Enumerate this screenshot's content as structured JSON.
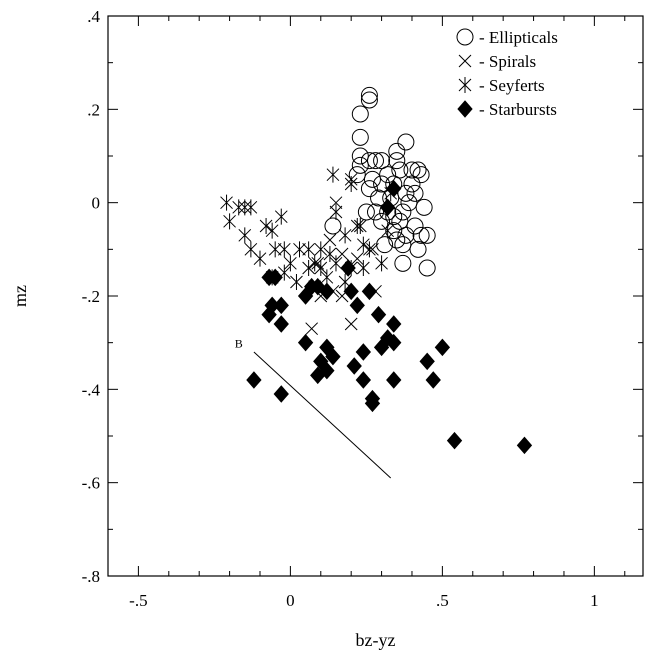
{
  "chart_data": {
    "type": "scatter",
    "title": "",
    "xlabel": "bz-yz",
    "ylabel": "mz",
    "xlim": [
      -0.6,
      1.16
    ],
    "ylim": [
      -0.8,
      0.4
    ],
    "grid": false,
    "legend_position": "top-right",
    "x_ticks": [
      {
        "value": -0.5,
        "label": "-.5"
      },
      {
        "value": 0,
        "label": "0"
      },
      {
        "value": 0.5,
        "label": ".5"
      },
      {
        "value": 1,
        "label": "1"
      }
    ],
    "y_ticks": [
      {
        "value": 0.4,
        "label": ".4"
      },
      {
        "value": 0.2,
        "label": ".2"
      },
      {
        "value": 0,
        "label": "0"
      },
      {
        "value": -0.2,
        "label": "-.2"
      },
      {
        "value": -0.4,
        "label": "-.4"
      },
      {
        "value": -0.6,
        "label": "-.6"
      },
      {
        "value": -0.8,
        "label": "-.8"
      }
    ],
    "series": [
      {
        "name": "Ellipticals",
        "legend_label": "- Ellipticals",
        "marker": "circle",
        "points": [
          [
            0.26,
            0.23
          ],
          [
            0.26,
            0.22
          ],
          [
            0.23,
            0.19
          ],
          [
            0.23,
            0.14
          ],
          [
            0.23,
            0.1
          ],
          [
            0.23,
            0.08
          ],
          [
            0.22,
            0.06
          ],
          [
            0.26,
            0.09
          ],
          [
            0.28,
            0.09
          ],
          [
            0.3,
            0.09
          ],
          [
            0.35,
            0.11
          ],
          [
            0.35,
            0.09
          ],
          [
            0.38,
            0.13
          ],
          [
            0.4,
            0.07
          ],
          [
            0.42,
            0.07
          ],
          [
            0.43,
            0.06
          ],
          [
            0.4,
            0.04
          ],
          [
            0.41,
            0.02
          ],
          [
            0.34,
            0.04
          ],
          [
            0.3,
            0.04
          ],
          [
            0.27,
            0.05
          ],
          [
            0.26,
            0.03
          ],
          [
            0.32,
            0.06
          ],
          [
            0.36,
            0.07
          ],
          [
            0.38,
            0.02
          ],
          [
            0.39,
            0
          ],
          [
            0.37,
            -0.02
          ],
          [
            0.34,
            -0.03
          ],
          [
            0.32,
            -0.02
          ],
          [
            0.3,
            -0.04
          ],
          [
            0.28,
            -0.02
          ],
          [
            0.25,
            -0.02
          ],
          [
            0.29,
            0.01
          ],
          [
            0.33,
            0.01
          ],
          [
            0.36,
            -0.04
          ],
          [
            0.38,
            -0.07
          ],
          [
            0.41,
            -0.05
          ],
          [
            0.43,
            -0.07
          ],
          [
            0.44,
            -0.01
          ],
          [
            0.45,
            -0.07
          ],
          [
            0.42,
            -0.1
          ],
          [
            0.37,
            -0.09
          ],
          [
            0.35,
            -0.08
          ],
          [
            0.31,
            -0.09
          ],
          [
            0.34,
            -0.06
          ],
          [
            0.37,
            -0.13
          ],
          [
            0.45,
            -0.14
          ],
          [
            0.14,
            -0.05
          ]
        ]
      },
      {
        "name": "Spirals",
        "legend_label": "- Spirals",
        "marker": "x",
        "points": [
          [
            0.2,
            0.05
          ],
          [
            0.15,
            0
          ],
          [
            0.13,
            -0.08
          ],
          [
            0.17,
            -0.11
          ],
          [
            0.22,
            -0.12
          ],
          [
            0.27,
            -0.1
          ],
          [
            0.09,
            -0.13
          ],
          [
            0.1,
            -0.2
          ],
          [
            0.14,
            -0.19
          ],
          [
            0.28,
            -0.19
          ],
          [
            0.2,
            -0.26
          ],
          [
            0.07,
            -0.27
          ],
          [
            0.08,
            -0.18
          ],
          [
            0.17,
            -0.2
          ]
        ]
      },
      {
        "name": "Seyferts",
        "legend_label": "- Seyferts",
        "marker": "star",
        "points": [
          [
            -0.21,
            0
          ],
          [
            -0.2,
            -0.04
          ],
          [
            -0.17,
            -0.01
          ],
          [
            -0.15,
            -0.01
          ],
          [
            -0.13,
            -0.01
          ],
          [
            -0.15,
            -0.07
          ],
          [
            -0.13,
            -0.1
          ],
          [
            -0.1,
            -0.12
          ],
          [
            -0.08,
            -0.05
          ],
          [
            -0.06,
            -0.06
          ],
          [
            -0.05,
            -0.1
          ],
          [
            -0.03,
            -0.03
          ],
          [
            -0.02,
            -0.1
          ],
          [
            0,
            -0.13
          ],
          [
            0.03,
            -0.1
          ],
          [
            0.06,
            -0.1
          ],
          [
            0.08,
            -0.13
          ],
          [
            0.1,
            -0.1
          ],
          [
            0.13,
            -0.11
          ],
          [
            0.15,
            -0.02
          ],
          [
            0.18,
            -0.07
          ],
          [
            0.2,
            0.04
          ],
          [
            0.22,
            -0.05
          ],
          [
            0.24,
            -0.09
          ],
          [
            0.24,
            -0.14
          ],
          [
            0.2,
            -0.14
          ],
          [
            0.18,
            -0.17
          ],
          [
            0.15,
            -0.13
          ],
          [
            0.1,
            -0.14
          ],
          [
            0.06,
            -0.14
          ],
          [
            0.02,
            -0.17
          ],
          [
            -0.02,
            -0.15
          ],
          [
            -0.06,
            -0.16
          ],
          [
            0.14,
            0.06
          ],
          [
            0.33,
            0.02
          ],
          [
            0.32,
            -0.06
          ],
          [
            0.3,
            -0.13
          ],
          [
            0.26,
            -0.1
          ],
          [
            0.23,
            -0.05
          ],
          [
            0.12,
            -0.16
          ]
        ]
      },
      {
        "name": "Starbursts",
        "legend_label": "- Starbursts",
        "marker": "diamond",
        "points": [
          [
            0.34,
            0.03
          ],
          [
            0.32,
            -0.01
          ],
          [
            -0.07,
            -0.16
          ],
          [
            -0.05,
            -0.16
          ],
          [
            -0.06,
            -0.22
          ],
          [
            -0.03,
            -0.22
          ],
          [
            -0.07,
            -0.24
          ],
          [
            -0.03,
            -0.26
          ],
          [
            0.05,
            -0.2
          ],
          [
            0.07,
            -0.18
          ],
          [
            0.09,
            -0.18
          ],
          [
            0.12,
            -0.19
          ],
          [
            0.2,
            -0.19
          ],
          [
            0.22,
            -0.22
          ],
          [
            0.26,
            -0.19
          ],
          [
            0.19,
            -0.14
          ],
          [
            0.29,
            -0.24
          ],
          [
            0.32,
            -0.29
          ],
          [
            0.34,
            -0.26
          ],
          [
            0.3,
            -0.31
          ],
          [
            0.34,
            -0.3
          ],
          [
            0.24,
            -0.32
          ],
          [
            0.12,
            -0.31
          ],
          [
            0.14,
            -0.33
          ],
          [
            0.1,
            -0.34
          ],
          [
            0.12,
            -0.36
          ],
          [
            0.05,
            -0.3
          ],
          [
            0.09,
            -0.37
          ],
          [
            0.21,
            -0.35
          ],
          [
            0.24,
            -0.38
          ],
          [
            0.27,
            -0.42
          ],
          [
            0.27,
            -0.43
          ],
          [
            0.34,
            -0.38
          ],
          [
            0.45,
            -0.34
          ],
          [
            0.47,
            -0.38
          ],
          [
            0.5,
            -0.31
          ],
          [
            -0.12,
            -0.38
          ],
          [
            -0.03,
            -0.41
          ],
          [
            0.54,
            -0.51
          ],
          [
            0.77,
            -0.52
          ]
        ]
      }
    ],
    "annotations": [
      {
        "label": "B",
        "x": -0.17,
        "y": -0.31,
        "line": [
          [
            -0.12,
            -0.32
          ],
          [
            0.33,
            -0.59
          ]
        ]
      }
    ]
  }
}
